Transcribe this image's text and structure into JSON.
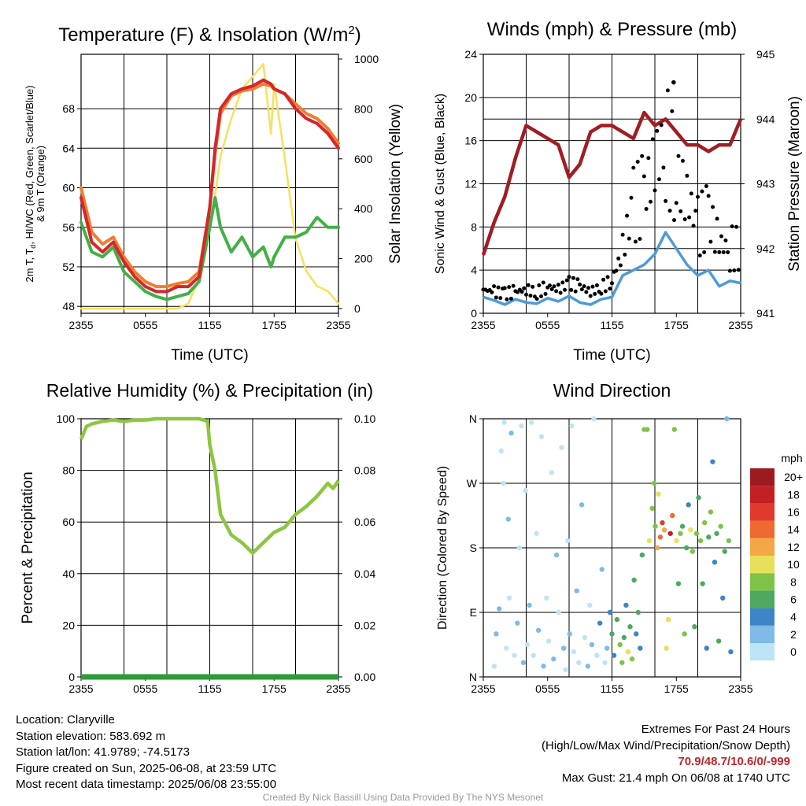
{
  "colors": {
    "temp": "#d6262b",
    "heat_index": "#f07d30",
    "dewpoint": "#41b046",
    "solar": "#f7e15a",
    "wind": "#4f9ad6",
    "gust": "#000000",
    "pressure": "#a01d22",
    "rh": "#8dc63f",
    "precip": "#2e9a3a"
  },
  "chart_data": [
    {
      "id": "temp",
      "type": "line",
      "title": "Temperature (F) & Insolation (W/m",
      "title_sup": "2",
      "title_close": ")",
      "xlabel": "Time (UTC)",
      "ylabel": [
        "2m T, T",
        "d",
        ", HI/WC (Red, Green, Scarlet/Blue)",
        "& 9m T (Orange)"
      ],
      "ylabel_right": "Solar Insolation (Yellow)",
      "x_ticks": [
        "2355",
        "0555",
        "1155",
        "1755",
        "2355"
      ],
      "ylim": [
        47.3,
        73.5
      ],
      "y_ticks": [
        48,
        52,
        56,
        60,
        64,
        68
      ],
      "ylim_right": [
        0,
        1000
      ],
      "y_ticks_right": [
        0,
        200,
        400,
        600,
        800,
        1000
      ],
      "x_hours": [
        0,
        1,
        2,
        3,
        4,
        5,
        6,
        7,
        8,
        9,
        10,
        11,
        12,
        12.5,
        13,
        14,
        15,
        16,
        17,
        17.7,
        18,
        19,
        20,
        21,
        22,
        23,
        24
      ],
      "series": [
        {
          "role": "temp",
          "values": [
            59,
            54.5,
            53.5,
            54.5,
            52.5,
            51,
            50,
            49.5,
            49.5,
            50,
            50,
            51,
            58,
            64,
            68,
            69.5,
            70,
            70.3,
            70.9,
            70.5,
            70,
            69.5,
            68,
            67,
            66.5,
            65.5,
            64
          ]
        },
        {
          "role": "heat_index",
          "values": [
            60,
            55.5,
            54.3,
            55,
            53,
            51.5,
            50.5,
            50,
            50,
            50.3,
            50.5,
            51.5,
            58,
            63.5,
            67.5,
            69.3,
            69.8,
            70,
            70.5,
            70.3,
            70,
            69.5,
            68.5,
            67.5,
            67,
            66,
            64.5
          ]
        },
        {
          "role": "dewpoint",
          "values": [
            56.5,
            53.5,
            53,
            54,
            51.5,
            50.5,
            49.5,
            49,
            48.7,
            49,
            49.3,
            50.5,
            56,
            59,
            56,
            53.5,
            55,
            53,
            54,
            52,
            53,
            55,
            55,
            55.5,
            57,
            56,
            56
          ]
        },
        {
          "role": "solar",
          "values": [
            0,
            0,
            0,
            0,
            0,
            0,
            0,
            0,
            0,
            0,
            20,
            120,
            340,
            450,
            610,
            760,
            880,
            930,
            980,
            700,
            900,
            600,
            280,
            150,
            90,
            70,
            20
          ]
        }
      ]
    },
    {
      "id": "wind",
      "type": "scatter",
      "title": "Winds (mph) & Pressure (mb)",
      "xlabel": "Time (UTC)",
      "ylabel": "Sonic Wind & Gust (Blue, Black)",
      "ylabel_right": "Station Pressure (Maroon)",
      "x_ticks": [
        "2355",
        "0555",
        "1155",
        "1755",
        "2355"
      ],
      "ylim": [
        0,
        24
      ],
      "y_ticks": [
        0,
        4,
        8,
        12,
        16,
        20,
        24
      ],
      "ylim_right": [
        941,
        945
      ],
      "y_ticks_right": [
        941,
        942,
        943,
        944,
        945
      ],
      "x_hours": [
        0,
        1,
        2,
        3,
        4,
        5,
        6,
        7,
        8,
        9,
        10,
        11,
        12,
        13,
        14,
        15,
        16,
        17,
        18,
        19,
        20,
        21,
        22,
        23,
        24
      ],
      "series": [
        {
          "role": "pressure",
          "values": [
            941.9,
            942.4,
            942.8,
            943.4,
            943.9,
            943.8,
            943.7,
            943.6,
            943.1,
            943.3,
            943.8,
            943.9,
            943.9,
            943.8,
            943.7,
            944.1,
            943.9,
            944.0,
            943.8,
            943.6,
            943.6,
            943.5,
            943.6,
            943.6,
            944.0
          ]
        },
        {
          "role": "wind",
          "values": [
            1.5,
            1.2,
            0.8,
            1.3,
            1.0,
            0.9,
            1.4,
            1.1,
            1.6,
            1.0,
            0.8,
            1.3,
            1.5,
            3.5,
            4.0,
            4.5,
            5.5,
            7.5,
            6.0,
            4.5,
            3.5,
            4.0,
            2.5,
            3.0,
            2.8
          ]
        },
        {
          "role": "gust",
          "values": [
            2.2,
            2.0,
            1.8,
            2.0,
            2.2,
            1.9,
            2.5,
            2.2,
            2.8,
            2.5,
            2.0,
            2.4,
            3.0,
            6.0,
            10.0,
            11.0,
            14.0,
            16.0,
            12.5,
            11.0,
            8.0,
            9.0,
            6.5,
            6.0,
            6.0
          ],
          "max": 21.4,
          "max_hour": 17.75
        }
      ]
    },
    {
      "id": "rh",
      "type": "line",
      "title": "Relative Humidity (%) & Precipitation (in)",
      "ylabel": "Percent & Precipitation",
      "x_ticks": [
        "2355",
        "0555",
        "1155",
        "1755",
        "2355"
      ],
      "ylim": [
        0,
        100
      ],
      "y_ticks": [
        0,
        20,
        40,
        60,
        80,
        100
      ],
      "ylim_right": [
        0,
        0.1
      ],
      "y_ticks_right": [
        "0.00",
        "0.02",
        "0.04",
        "0.06",
        "0.08",
        "0.10"
      ],
      "x_hours": [
        0,
        0.5,
        1,
        2,
        3,
        4,
        5,
        6,
        7,
        8,
        9,
        10,
        11,
        11.8,
        12,
        12.5,
        13,
        14,
        15,
        16,
        17,
        18,
        19,
        20,
        21,
        22,
        23,
        23.5,
        24
      ],
      "series": [
        {
          "role": "rh",
          "values": [
            92,
            97,
            98,
            99,
            99.5,
            99,
            99.5,
            99.5,
            100,
            100,
            100,
            100,
            100,
            99,
            90,
            80,
            63,
            55,
            52,
            48,
            52,
            56,
            58,
            63,
            66,
            70,
            75,
            73,
            76
          ]
        },
        {
          "role": "precip",
          "values": [
            0,
            0,
            0,
            0,
            0,
            0,
            0,
            0,
            0,
            0,
            0,
            0,
            0,
            0,
            0,
            0,
            0,
            0,
            0,
            0,
            0,
            0,
            0,
            0,
            0,
            0,
            0,
            0,
            0
          ]
        }
      ]
    },
    {
      "id": "wdir",
      "type": "scatter",
      "title": "Wind Direction",
      "ylabel": "Direction (Colored By Speed)",
      "x_ticks": [
        "2355",
        "0555",
        "1155",
        "1755",
        "2355"
      ],
      "y_ticks": [
        "N",
        "E",
        "S",
        "W",
        "N"
      ],
      "ylim": [
        0,
        360
      ],
      "legend_title": "mph",
      "legend_labels": [
        "0",
        "2",
        "4",
        "6",
        "8",
        "10",
        "12",
        "14",
        "16",
        "18",
        "20+"
      ],
      "legend_colors": [
        "#bde4f7",
        "#7fbbe6",
        "#3d85c6",
        "#4ea860",
        "#7ec348",
        "#e8e05a",
        "#f5a646",
        "#ee6a30",
        "#e03a2c",
        "#c21f25",
        "#9b1b1e"
      ],
      "points": [
        [
          0.3,
          15,
          0
        ],
        [
          0.5,
          60,
          1
        ],
        [
          0.8,
          95,
          1
        ],
        [
          1.0,
          315,
          0
        ],
        [
          1.2,
          270,
          0
        ],
        [
          1.3,
          355,
          0
        ],
        [
          1.5,
          40,
          0
        ],
        [
          1.7,
          220,
          1
        ],
        [
          1.8,
          110,
          0
        ],
        [
          2.0,
          340,
          1
        ],
        [
          2.3,
          30,
          0
        ],
        [
          2.6,
          75,
          1
        ],
        [
          2.8,
          180,
          0
        ],
        [
          3.0,
          350,
          0
        ],
        [
          3.2,
          20,
          1
        ],
        [
          3.4,
          260,
          0
        ],
        [
          3.6,
          45,
          0
        ],
        [
          3.8,
          100,
          1
        ],
        [
          4.0,
          355,
          0
        ],
        [
          4.2,
          30,
          0
        ],
        [
          4.5,
          200,
          0
        ],
        [
          4.7,
          65,
          1
        ],
        [
          5.0,
          335,
          0
        ],
        [
          5.2,
          15,
          1
        ],
        [
          5.5,
          110,
          0
        ],
        [
          5.7,
          50,
          0
        ],
        [
          6.0,
          285,
          0
        ],
        [
          6.2,
          25,
          1
        ],
        [
          6.5,
          170,
          1
        ],
        [
          6.7,
          90,
          0
        ],
        [
          7.0,
          320,
          0
        ],
        [
          7.2,
          40,
          1
        ],
        [
          7.4,
          10,
          0
        ],
        [
          7.6,
          190,
          0
        ],
        [
          7.8,
          60,
          1
        ],
        [
          8.0,
          350,
          0
        ],
        [
          8.2,
          35,
          0
        ],
        [
          8.5,
          120,
          1
        ],
        [
          8.7,
          20,
          0
        ],
        [
          9.0,
          240,
          1
        ],
        [
          9.3,
          55,
          0
        ],
        [
          9.6,
          15,
          1
        ],
        [
          9.8,
          100,
          0
        ],
        [
          10.0,
          45,
          1
        ],
        [
          10.2,
          360,
          0
        ],
        [
          10.5,
          30,
          0
        ],
        [
          10.8,
          75,
          2
        ],
        [
          11.0,
          150,
          1
        ],
        [
          11.3,
          20,
          0
        ],
        [
          11.5,
          40,
          1
        ],
        [
          11.8,
          90,
          2
        ],
        [
          12.0,
          60,
          3
        ],
        [
          12.2,
          30,
          2
        ],
        [
          12.5,
          80,
          3
        ],
        [
          12.8,
          45,
          4
        ],
        [
          13.0,
          20,
          4
        ],
        [
          13.2,
          55,
          3
        ],
        [
          13.4,
          100,
          2
        ],
        [
          13.6,
          35,
          5
        ],
        [
          13.8,
          70,
          3
        ],
        [
          14.0,
          25,
          4
        ],
        [
          14.2,
          135,
          3
        ],
        [
          14.4,
          60,
          2
        ],
        [
          14.6,
          90,
          3
        ],
        [
          14.8,
          40,
          2
        ],
        [
          15.0,
          170,
          3
        ],
        [
          15.2,
          345,
          4
        ],
        [
          15.5,
          345,
          4
        ],
        [
          15.7,
          190,
          5
        ],
        [
          16.0,
          235,
          4
        ],
        [
          16.2,
          270,
          4
        ],
        [
          16.3,
          210,
          4
        ],
        [
          16.5,
          180,
          6
        ],
        [
          16.6,
          255,
          5
        ],
        [
          16.8,
          195,
          7
        ],
        [
          17.0,
          215,
          8
        ],
        [
          17.2,
          205,
          6
        ],
        [
          17.4,
          40,
          5
        ],
        [
          17.6,
          80,
          5
        ],
        [
          17.8,
          200,
          9
        ],
        [
          18.0,
          225,
          7
        ],
        [
          18.2,
          345,
          4
        ],
        [
          18.4,
          190,
          5
        ],
        [
          18.6,
          130,
          3
        ],
        [
          18.8,
          200,
          4
        ],
        [
          19.0,
          210,
          3
        ],
        [
          19.2,
          60,
          4
        ],
        [
          19.4,
          180,
          3
        ],
        [
          19.6,
          240,
          2
        ],
        [
          19.8,
          205,
          5
        ],
        [
          20.0,
          175,
          4
        ],
        [
          20.2,
          70,
          3
        ],
        [
          20.4,
          200,
          4
        ],
        [
          20.6,
          250,
          3
        ],
        [
          20.8,
          190,
          4
        ],
        [
          21.0,
          130,
          3
        ],
        [
          21.2,
          215,
          4
        ],
        [
          21.4,
          40,
          2
        ],
        [
          21.6,
          195,
          3
        ],
        [
          21.8,
          230,
          4
        ],
        [
          22.0,
          300,
          2
        ],
        [
          22.2,
          160,
          2
        ],
        [
          22.4,
          200,
          3
        ],
        [
          22.6,
          50,
          3
        ],
        [
          22.8,
          210,
          4
        ],
        [
          23.0,
          110,
          2
        ],
        [
          23.2,
          175,
          3
        ],
        [
          23.4,
          360,
          1
        ],
        [
          23.6,
          190,
          4
        ],
        [
          23.8,
          35,
          2
        ]
      ]
    }
  ],
  "station_info": {
    "location": "Location: Claryville",
    "elevation": "Station elevation: 583.692 m",
    "latlon": "Station lat/lon: 41.9789; -74.5173",
    "created": "Figure created on Sun, 2025-06-08, at 23:59 UTC",
    "recent": "Most recent data timestamp: 2025/06/08 23:55:00"
  },
  "extremes": {
    "title": "Extremes For Past 24 Hours",
    "subtitle": "(High/Low/Max Wind/Precipitation/Snow Depth)",
    "values": "70.9/48.7/10.6/0/-999",
    "gust": "Max Gust: 21.4 mph On 06/08 at 1740 UTC"
  },
  "credit": "Created By Nick Bassill Using Data Provided By The NYS Mesonet"
}
